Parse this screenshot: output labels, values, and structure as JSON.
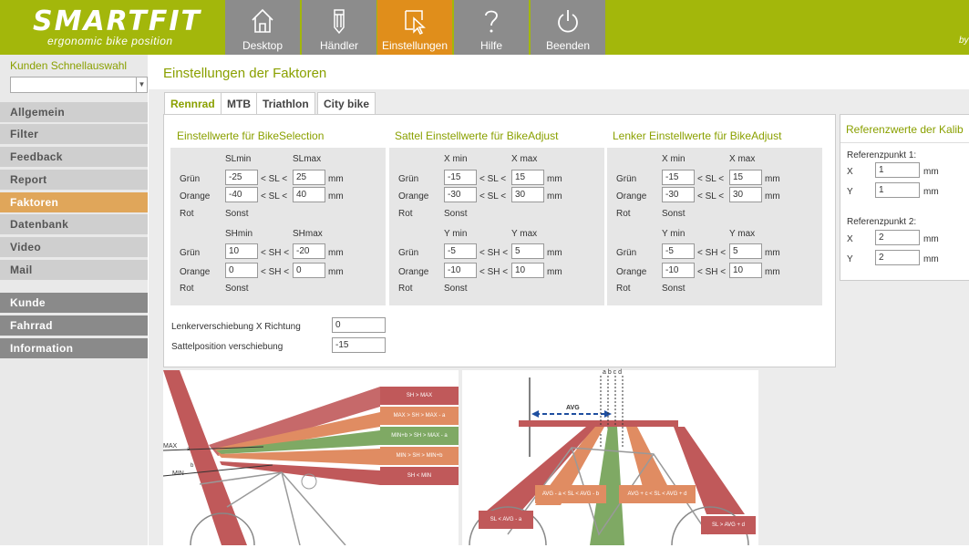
{
  "header": {
    "brand": "SMARTFIT",
    "tagline": "ergonomic bike position",
    "byline": "by",
    "nav": [
      {
        "label": "Desktop",
        "icon": "home-icon"
      },
      {
        "label": "Händler",
        "icon": "pencil-icon"
      },
      {
        "label": "Einstellungen",
        "icon": "cursor-icon",
        "active": true
      },
      {
        "label": "Hilfe",
        "icon": "question-icon"
      },
      {
        "label": "Beenden",
        "icon": "power-icon"
      }
    ]
  },
  "sidebar": {
    "title": "Kunden Schnellauswahl",
    "select_value": "",
    "items": [
      "Allgemein",
      "Filter",
      "Feedback",
      "Report",
      "Faktoren",
      "Datenbank",
      "Video",
      "Mail"
    ],
    "active_item": "Faktoren",
    "groups": [
      "Kunde",
      "Fahrrad",
      "Information"
    ]
  },
  "main": {
    "title": "Einstellungen der Faktoren",
    "tabs": [
      "Rennrad",
      "MTB",
      "Triathlon",
      "City bike"
    ],
    "active_tab": "Rennrad"
  },
  "labels": {
    "gruen": "Grün",
    "orange": "Orange",
    "rot": "Rot",
    "sonst": "Sonst",
    "mm": "mm",
    "sl_op": "< SL <",
    "sh_op": "< SH <",
    "slmin": "SLmin",
    "slmax": "SLmax",
    "shmin": "SHmin",
    "shmax": "SHmax",
    "xmin": "X min",
    "xmax": "X max",
    "ymin": "Y min",
    "ymax": "Y max"
  },
  "sections": {
    "bikeselection": {
      "title": "Einstellwerte für BikeSelection",
      "sl": {
        "gruen": [
          "-25",
          "25"
        ],
        "orange": [
          "-40",
          "40"
        ]
      },
      "sh": {
        "gruen": [
          "10",
          "-20"
        ],
        "orange": [
          "0",
          "0"
        ]
      }
    },
    "sattel": {
      "title": "Sattel Einstellwerte für BikeAdjust",
      "sl": {
        "gruen": [
          "-15",
          "15"
        ],
        "orange": [
          "-30",
          "30"
        ]
      },
      "sh": {
        "gruen": [
          "-5",
          "5"
        ],
        "orange": [
          "-10",
          "10"
        ]
      }
    },
    "lenker": {
      "title": "Lenker Einstellwerte für BikeAdjust",
      "sl": {
        "gruen": [
          "-15",
          "15"
        ],
        "orange": [
          "-30",
          "30"
        ]
      },
      "sh": {
        "gruen": [
          "-5",
          "5"
        ],
        "orange": [
          "-10",
          "10"
        ]
      }
    }
  },
  "extra": {
    "lenker_label": "Lenkerverschiebung X Richtung",
    "lenker_value": "0",
    "sattel_label": "Sattelposition verschiebung",
    "sattel_value": "-15"
  },
  "reference": {
    "title": "Referenzwerte der Kalib",
    "p1_label": "Referenzpunkt 1:",
    "p1": {
      "x": "1",
      "y": "1"
    },
    "p2_label": "Referenzpunkt 2:",
    "p2": {
      "x": "2",
      "y": "2"
    },
    "x_label": "X",
    "y_label": "Y"
  },
  "diagram_left": {
    "bars": [
      "SH > MAX",
      "MAX > SH > MAX - a",
      "MIN+b > SH > MAX - a",
      "MIN > SH > MIN+b",
      "SH < MIN"
    ],
    "max_label": "MAX",
    "min_label": "MIN",
    "a_label": "a",
    "b_label": "b"
  },
  "diagram_right": {
    "avg_label": "AVG",
    "top_labels": "a b c d",
    "bars": [
      "SL < AVG - a",
      "AVG - a < SL < AVG - b",
      "AVG + c < SL < AVG + d",
      "SL > AVG + d"
    ]
  },
  "colors": {
    "accent": "#a3b70b",
    "active": "#e08e1b",
    "red": "#c0595a",
    "orange": "#e08c62",
    "green": "#7fa964"
  }
}
